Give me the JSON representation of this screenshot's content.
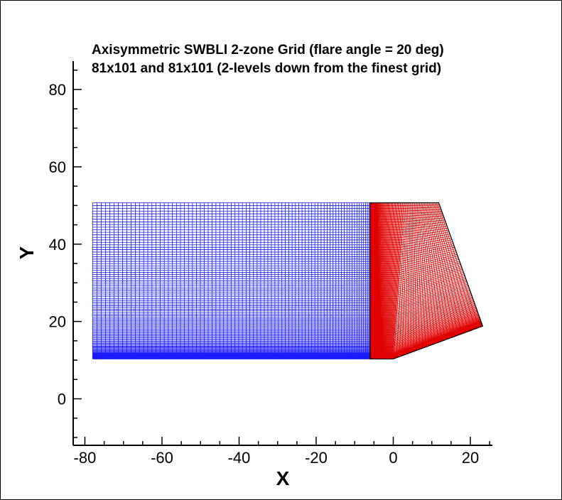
{
  "chart_data": {
    "type": "line",
    "title": "Axisymmetric SWBLI 2-zone Grid (flare angle = 20 deg)",
    "subtitle": "81x101 and 81x101 (2-levels down from the finest grid)",
    "xlabel": "X",
    "ylabel": "Y",
    "xlim": [
      -81,
      26
    ],
    "ylim": [
      -12,
      88
    ],
    "x_ticks": [
      -80,
      -60,
      -40,
      -20,
      0,
      20
    ],
    "y_ticks": [
      0,
      20,
      40,
      60,
      80
    ],
    "grid": false,
    "series": [
      {
        "zone": 1,
        "color": "#1a1aff",
        "dims": "81x101",
        "x": [
          -78,
          -6
        ],
        "y": [
          10.3,
          50.7
        ]
      },
      {
        "zone": 2,
        "color": "#e00000",
        "dims": "81x101",
        "corners": {
          "bottom_left": [
            -6,
            10.3
          ],
          "bottom_right": [
            0,
            10.3
          ],
          "flare_end": [
            23.2,
            18.8
          ],
          "top_left": [
            -6,
            50.7
          ],
          "top_right": [
            11.8,
            50.7
          ]
        }
      }
    ]
  }
}
